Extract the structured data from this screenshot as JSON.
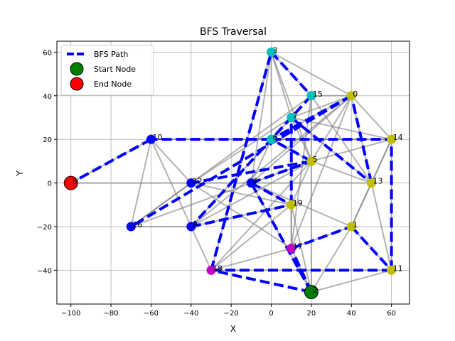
{
  "chart_data": {
    "type": "scatter",
    "title": "BFS Traversal",
    "xlabel": "X",
    "ylabel": "Y",
    "xlim": [
      -107,
      69
    ],
    "ylim": [
      -55.5,
      65
    ],
    "xticks": [
      -100,
      -80,
      -60,
      -40,
      -20,
      0,
      20,
      40,
      60
    ],
    "yticks": [
      -40,
      -20,
      0,
      20,
      40,
      60
    ],
    "grid": true,
    "legend": {
      "placement": "top-left",
      "entries": [
        {
          "label": "BFS Path",
          "kind": "line",
          "color": "#0000ff"
        },
        {
          "label": "Start Node",
          "kind": "marker",
          "color": "#008000"
        },
        {
          "label": "End Node",
          "kind": "marker",
          "color": "#ff0000"
        }
      ]
    },
    "nodes": [
      {
        "id": "0",
        "x": 40,
        "y": 40,
        "color": "#bfbf00"
      },
      {
        "id": "1",
        "x": 40,
        "y": -20,
        "color": "#bfbf00"
      },
      {
        "id": "2",
        "x": 20,
        "y": -50,
        "color": "#008000",
        "role": "start"
      },
      {
        "id": "3",
        "x": 0,
        "y": 60,
        "color": "#00bfbf"
      },
      {
        "id": "4",
        "x": -10,
        "y": 0,
        "color": "#0000ff"
      },
      {
        "id": "5",
        "x": 20,
        "y": 10,
        "color": "#bfbf00"
      },
      {
        "id": "6",
        "x": 0,
        "y": 20,
        "color": "#00bfbf"
      },
      {
        "id": "7",
        "x": 10,
        "y": 30,
        "color": "#00bfbf"
      },
      {
        "id": "8",
        "x": -100,
        "y": 0,
        "color": "#ff0000",
        "role": "end"
      },
      {
        "id": "9",
        "x": -40,
        "y": -20,
        "color": "#0000ff"
      },
      {
        "id": "10",
        "x": -60,
        "y": 20,
        "color": "#0000ff"
      },
      {
        "id": "11",
        "x": 60,
        "y": -40,
        "color": "#bfbf00"
      },
      {
        "id": "12",
        "x": -40,
        "y": 0,
        "color": "#0000ff"
      },
      {
        "id": "13",
        "x": 50,
        "y": 0,
        "color": "#bfbf00"
      },
      {
        "id": "14",
        "x": 60,
        "y": 20,
        "color": "#bfbf00"
      },
      {
        "id": "15",
        "x": 20,
        "y": 40,
        "color": "#00bfbf"
      },
      {
        "id": "16",
        "x": -70,
        "y": -20,
        "color": "#0000ff"
      },
      {
        "id": "17",
        "x": 10,
        "y": -30,
        "color": "#bf00bf"
      },
      {
        "id": "18",
        "x": -30,
        "y": -40,
        "color": "#bf00bf"
      },
      {
        "id": "19",
        "x": 10,
        "y": -10,
        "color": "#bfbf00"
      }
    ],
    "edges": [
      [
        "0",
        "15"
      ],
      [
        "0",
        "7"
      ],
      [
        "0",
        "6"
      ],
      [
        "0",
        "5"
      ],
      [
        "0",
        "14"
      ],
      [
        "0",
        "13"
      ],
      [
        "0",
        "4"
      ],
      [
        "0",
        "17"
      ],
      [
        "3",
        "15"
      ],
      [
        "3",
        "6"
      ],
      [
        "3",
        "7"
      ],
      [
        "3",
        "4"
      ],
      [
        "3",
        "5"
      ],
      [
        "3",
        "0"
      ],
      [
        "10",
        "8"
      ],
      [
        "10",
        "14"
      ],
      [
        "10",
        "16"
      ],
      [
        "10",
        "12"
      ],
      [
        "10",
        "9"
      ],
      [
        "10",
        "6"
      ],
      [
        "8",
        "12"
      ],
      [
        "12",
        "4"
      ],
      [
        "12",
        "9"
      ],
      [
        "12",
        "19"
      ],
      [
        "12",
        "7"
      ],
      [
        "12",
        "17"
      ],
      [
        "16",
        "9"
      ],
      [
        "16",
        "15"
      ],
      [
        "16",
        "4"
      ],
      [
        "16",
        "12"
      ],
      [
        "9",
        "19"
      ],
      [
        "9",
        "18"
      ],
      [
        "9",
        "6"
      ],
      [
        "9",
        "5"
      ],
      [
        "9",
        "0"
      ],
      [
        "18",
        "11"
      ],
      [
        "18",
        "3"
      ],
      [
        "18",
        "17"
      ],
      [
        "18",
        "19"
      ],
      [
        "18",
        "5"
      ],
      [
        "2",
        "4"
      ],
      [
        "2",
        "17"
      ],
      [
        "2",
        "1"
      ],
      [
        "2",
        "19"
      ],
      [
        "2",
        "11"
      ],
      [
        "2",
        "5"
      ],
      [
        "4",
        "19"
      ],
      [
        "4",
        "5"
      ],
      [
        "4",
        "6"
      ],
      [
        "4",
        "13"
      ],
      [
        "4",
        "1"
      ],
      [
        "6",
        "14"
      ],
      [
        "6",
        "7"
      ],
      [
        "6",
        "5"
      ],
      [
        "7",
        "5"
      ],
      [
        "7",
        "13"
      ],
      [
        "7",
        "14"
      ],
      [
        "15",
        "13"
      ],
      [
        "15",
        "17"
      ],
      [
        "15",
        "5"
      ],
      [
        "13",
        "14"
      ],
      [
        "13",
        "11"
      ],
      [
        "13",
        "1"
      ],
      [
        "13",
        "5"
      ],
      [
        "14",
        "11"
      ],
      [
        "14",
        "1"
      ],
      [
        "1",
        "11"
      ],
      [
        "1",
        "17"
      ],
      [
        "19",
        "17"
      ],
      [
        "17",
        "7"
      ],
      [
        "19",
        "5"
      ],
      [
        "5",
        "14"
      ]
    ],
    "bfs_path": [
      [
        "2",
        "18"
      ],
      [
        "2",
        "4"
      ],
      [
        "2",
        "17"
      ],
      [
        "18",
        "11"
      ],
      [
        "18",
        "3"
      ],
      [
        "17",
        "1"
      ],
      [
        "4",
        "19"
      ],
      [
        "4",
        "5"
      ],
      [
        "1",
        "11"
      ],
      [
        "11",
        "14"
      ],
      [
        "3",
        "15"
      ],
      [
        "15",
        "9"
      ],
      [
        "9",
        "19"
      ],
      [
        "19",
        "7"
      ],
      [
        "7",
        "13"
      ],
      [
        "13",
        "0"
      ],
      [
        "0",
        "16"
      ],
      [
        "0",
        "6"
      ],
      [
        "6",
        "10"
      ],
      [
        "10",
        "8"
      ],
      [
        "6",
        "14"
      ],
      [
        "5",
        "12"
      ],
      [
        "5",
        "6"
      ]
    ]
  }
}
